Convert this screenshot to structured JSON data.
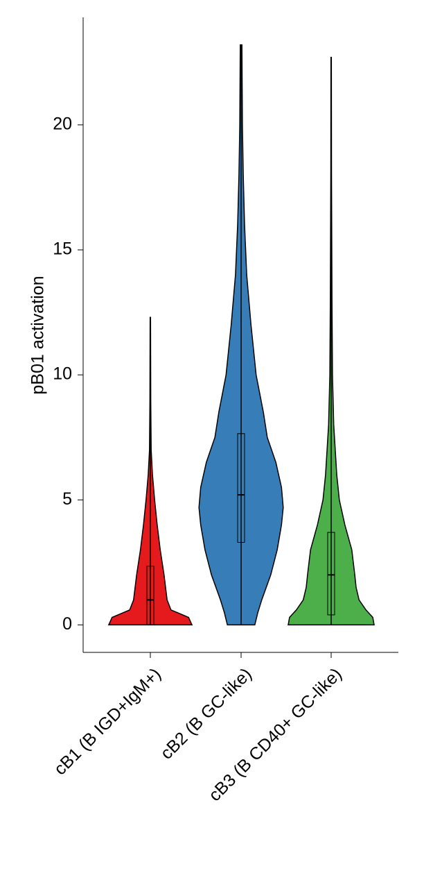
{
  "chart_data": {
    "type": "violin",
    "ylabel": "pB01 activation",
    "categories": [
      "cB1 (B IGD+IgM+)",
      "cB2 (B GC-like)",
      "cB3 (B CD40+ GC-like)"
    ],
    "ylim": [
      -1.1,
      24.3
    ],
    "yticks": [
      0,
      5,
      10,
      15,
      20
    ],
    "series": [
      {
        "color": "#e41a1c",
        "min": 0,
        "q1": 0,
        "median": 1.0,
        "q3": 2.35,
        "max": 12.3,
        "density_y": [
          0,
          0.3,
          0.6,
          1,
          2,
          3,
          4,
          5,
          6,
          7,
          9,
          12.3
        ],
        "density": [
          0.97,
          0.89,
          0.48,
          0.39,
          0.32,
          0.23,
          0.16,
          0.1,
          0.05,
          0.02,
          0.01,
          0.005
        ]
      },
      {
        "color": "#377eb8",
        "min": 0,
        "q1": 3.3,
        "median": 5.2,
        "q3": 7.65,
        "max": 23.2,
        "density_y": [
          0,
          0.5,
          1,
          2,
          3,
          4,
          4.7,
          5.5,
          6.5,
          7.5,
          8.5,
          10,
          12,
          14,
          16,
          18,
          20,
          23.2
        ],
        "density": [
          0.32,
          0.39,
          0.48,
          0.69,
          0.84,
          0.94,
          0.98,
          0.94,
          0.81,
          0.61,
          0.52,
          0.35,
          0.23,
          0.13,
          0.08,
          0.05,
          0.03,
          0.02
        ]
      },
      {
        "color": "#4daf4a",
        "min": 0,
        "q1": 0.4,
        "median": 2.0,
        "q3": 3.7,
        "max": 22.7,
        "density_y": [
          0,
          0.3,
          0.6,
          1,
          1.5,
          2,
          3,
          4,
          5,
          6,
          8,
          10,
          13,
          18,
          22.7
        ],
        "density": [
          1.0,
          0.97,
          0.81,
          0.65,
          0.58,
          0.55,
          0.48,
          0.32,
          0.19,
          0.13,
          0.06,
          0.03,
          0.02,
          0.008,
          0.005
        ]
      }
    ]
  }
}
